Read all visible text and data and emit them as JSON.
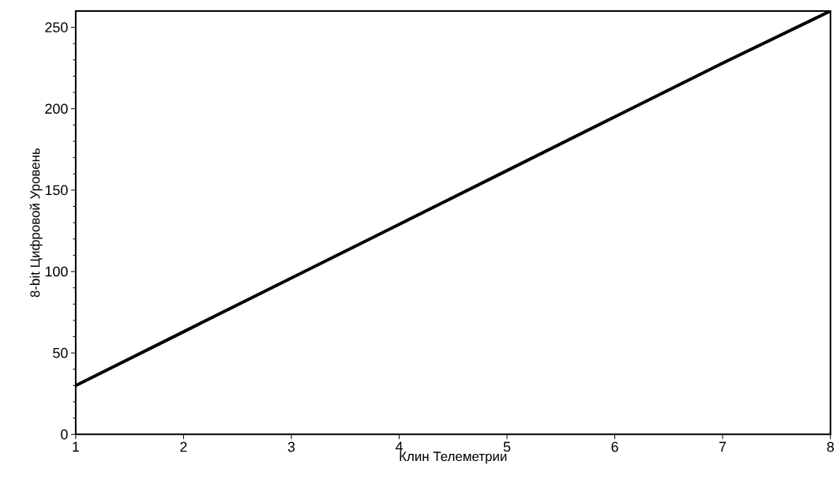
{
  "chart_data": {
    "type": "line",
    "xlabel": "Клин Телеметрии",
    "ylabel": "8-bit Цифровой Уровень",
    "x": [
      1,
      2,
      3,
      4,
      5,
      6,
      7,
      8
    ],
    "series": [
      {
        "color": "#000000",
        "values": [
          30,
          63,
          96,
          129,
          162,
          195,
          228,
          260
        ]
      }
    ],
    "xlim": [
      1,
      8
    ],
    "ylim": [
      0,
      260
    ],
    "xticks": [
      1,
      2,
      3,
      4,
      5,
      6,
      7,
      8
    ],
    "yticks": [
      0,
      50,
      100,
      150,
      200,
      250
    ],
    "grid": false,
    "marker": "none",
    "line_style": "solid"
  }
}
